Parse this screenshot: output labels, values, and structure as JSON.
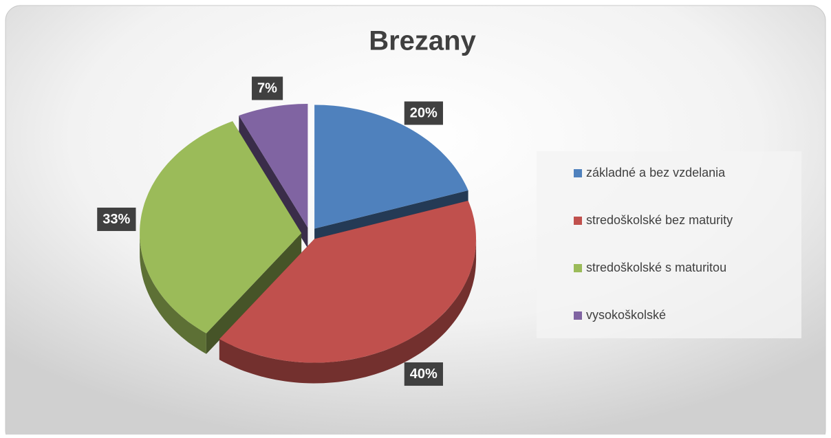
{
  "chart_data": {
    "type": "pie",
    "title": "Brezany",
    "categories": [
      "základné a bez vzdelania",
      "stredoškolské bez maturity",
      "stredoškolské s maturitou",
      "vysokoškolské"
    ],
    "values": [
      20,
      40,
      33,
      7
    ],
    "value_labels": [
      "20%",
      "40%",
      "33%",
      "7%"
    ],
    "colors": [
      "#4f81bd",
      "#c0504d",
      "#9bbb59",
      "#8064a2"
    ],
    "legend": "right"
  }
}
